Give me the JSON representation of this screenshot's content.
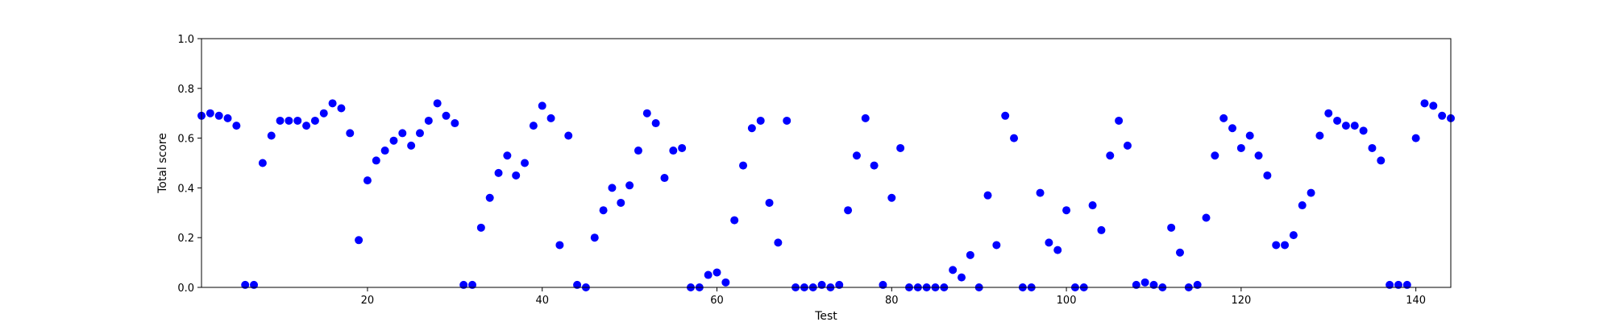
{
  "chart_data": {
    "type": "scatter",
    "title": "",
    "xlabel": "Test",
    "ylabel": "Total score",
    "xlim": [
      1,
      144
    ],
    "ylim": [
      0.0,
      1.0
    ],
    "x_ticks": [
      20,
      40,
      60,
      80,
      100,
      120,
      140
    ],
    "x_tick_labels": [
      "20",
      "40",
      "60",
      "80",
      "100",
      "120",
      "140"
    ],
    "y_ticks": [
      0.0,
      0.2,
      0.4,
      0.6,
      0.8,
      1.0
    ],
    "y_tick_labels": [
      "0.0",
      "0.2",
      "0.4",
      "0.6",
      "0.8",
      "1.0"
    ],
    "grid": false,
    "marker_color": "#0000ff",
    "series": [
      {
        "x": [
          1,
          2,
          3,
          4,
          5,
          6,
          7,
          8,
          9,
          10,
          11,
          12,
          13,
          14,
          15,
          16,
          17,
          18,
          19,
          20,
          21,
          22,
          23,
          24,
          25,
          26,
          27,
          28,
          29,
          30,
          31,
          32,
          33,
          34,
          35,
          36,
          37,
          38,
          39,
          40,
          41,
          42,
          43,
          44,
          45,
          46,
          47,
          48,
          49,
          50,
          51,
          52,
          53,
          54,
          55,
          56,
          57,
          58,
          59,
          60,
          61,
          62,
          63,
          64,
          65,
          66,
          67,
          68,
          69,
          70,
          71,
          72,
          73,
          74,
          75,
          76,
          77,
          78,
          79,
          80,
          81,
          82,
          83,
          84,
          85,
          86,
          87,
          88,
          89,
          90,
          91,
          92,
          93,
          94,
          95,
          96,
          97,
          98,
          99,
          100,
          101,
          102,
          103,
          104,
          105,
          106,
          107,
          108,
          109,
          110,
          111,
          112,
          113,
          114,
          115,
          116,
          117,
          118,
          119,
          120,
          121,
          122,
          123,
          124,
          125,
          126,
          127,
          128,
          129,
          130,
          131,
          132,
          133,
          134,
          135,
          136,
          137,
          138,
          139,
          140,
          141,
          142,
          143,
          144
        ],
        "y": [
          0.69,
          0.7,
          0.69,
          0.68,
          0.65,
          0.01,
          0.01,
          0.5,
          0.61,
          0.67,
          0.67,
          0.67,
          0.65,
          0.67,
          0.7,
          0.74,
          0.72,
          0.62,
          0.19,
          0.43,
          0.51,
          0.55,
          0.59,
          0.62,
          0.57,
          0.62,
          0.67,
          0.74,
          0.69,
          0.66,
          0.01,
          0.01,
          0.24,
          0.36,
          0.46,
          0.53,
          0.45,
          0.5,
          0.65,
          0.73,
          0.68,
          0.17,
          0.61,
          0.01,
          0.0,
          0.2,
          0.31,
          0.4,
          0.34,
          0.41,
          0.55,
          0.7,
          0.66,
          0.44,
          0.55,
          0.56,
          0.0,
          0.0,
          0.05,
          0.06,
          0.02,
          0.27,
          0.49,
          0.64,
          0.67,
          0.34,
          0.18,
          0.67,
          0.0,
          0.0,
          0.0,
          0.01,
          0.0,
          0.01,
          0.31,
          0.53,
          0.68,
          0.49,
          0.01,
          0.36,
          0.56,
          0.0,
          0.0,
          0.0,
          0.0,
          0.0,
          0.07,
          0.04,
          0.13,
          0.0,
          0.37,
          0.17,
          0.69,
          0.6,
          0.0,
          0.0,
          0.38,
          0.18,
          0.15,
          0.31,
          0.0,
          0.0,
          0.33,
          0.23,
          0.53,
          0.67,
          0.57,
          0.01,
          0.02,
          0.01,
          0.0,
          0.24,
          0.14,
          0.0,
          0.01,
          0.28,
          0.53,
          0.68,
          0.64,
          0.56,
          0.61,
          0.53,
          0.45,
          0.17,
          0.17,
          0.21,
          0.33,
          0.38,
          0.61,
          0.7,
          0.67,
          0.65,
          0.65,
          0.63,
          0.56,
          0.51,
          0.01,
          0.01,
          0.01,
          0.6,
          0.74,
          0.73,
          0.69,
          0.68
        ]
      }
    ]
  }
}
